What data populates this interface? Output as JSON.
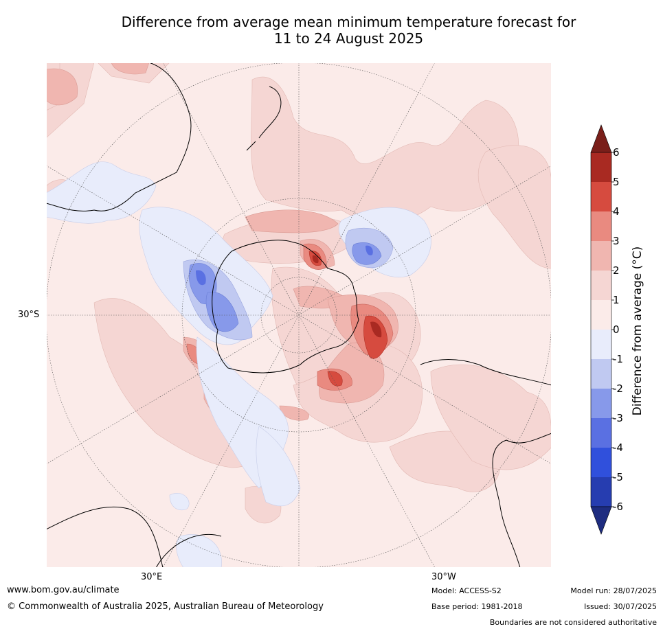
{
  "title": {
    "line1": "Difference from average mean minimum temperature forecast for",
    "line2": "11 to 24 August 2025"
  },
  "map": {
    "projection": "south-polar-stereographic",
    "lat_label": "30°S",
    "lon_labels": [
      "30°E",
      "30°W"
    ]
  },
  "chart_data": {
    "type": "heatmap",
    "title": "Difference from average mean minimum temperature forecast for 11 to 24 August 2025",
    "colorbar": {
      "label": "Difference from average (°C)",
      "ticks": [
        6,
        5,
        4,
        3,
        2,
        1,
        0,
        -1,
        -2,
        -3,
        -4,
        -5,
        -6
      ],
      "levels": [
        {
          "range": [
            6,
            99
          ],
          "color": "#7a1f1a"
        },
        {
          "range": [
            5,
            6
          ],
          "color": "#a92a22"
        },
        {
          "range": [
            4,
            5
          ],
          "color": "#d64b3f"
        },
        {
          "range": [
            3,
            4
          ],
          "color": "#e98a80"
        },
        {
          "range": [
            2,
            3
          ],
          "color": "#f0b6b0"
        },
        {
          "range": [
            1,
            2
          ],
          "color": "#f5d6d3"
        },
        {
          "range": [
            0,
            1
          ],
          "color": "#fbebe9"
        },
        {
          "range": [
            -1,
            0
          ],
          "color": "#e8ecfb"
        },
        {
          "range": [
            -2,
            -1
          ],
          "color": "#c0c9f1"
        },
        {
          "range": [
            -3,
            -2
          ],
          "color": "#8799ea"
        },
        {
          "range": [
            -4,
            -3
          ],
          "color": "#5a70e2"
        },
        {
          "range": [
            -5,
            -4
          ],
          "color": "#3050dc"
        },
        {
          "range": [
            -6,
            -5
          ],
          "color": "#263db0"
        },
        {
          "range": [
            -99,
            -6
          ],
          "color": "#1e2c80"
        }
      ],
      "extend": "both"
    },
    "grid": true
  },
  "footer": {
    "url": "www.bom.gov.au/climate",
    "copyright": "© Commonwealth of Australia 2025, Australian Bureau of Meteorology",
    "model": "Model: ACCESS-S2",
    "base_period": "Base period: 1981-2018",
    "model_run": "Model run: 28/07/2025",
    "issued": "Issued: 30/07/2025",
    "boundaries": "Boundaries are not considered authoritative"
  }
}
